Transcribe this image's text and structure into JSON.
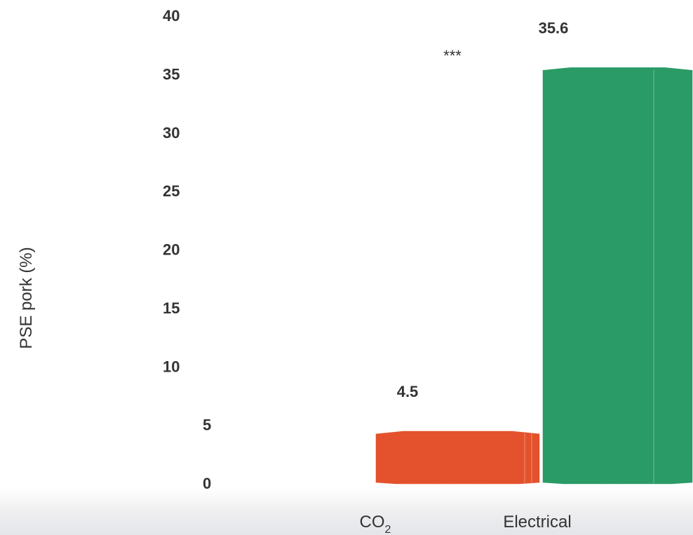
{
  "chart_data": {
    "type": "bar",
    "ylabel": "PSE pork (%)",
    "ylim": [
      0,
      40
    ],
    "yticks": [
      0,
      5,
      10,
      15,
      20,
      25,
      30,
      35,
      40
    ],
    "categories": [
      {
        "main": "CO",
        "sub": "2"
      },
      {
        "main": "Electrical",
        "sub": ""
      }
    ],
    "values": [
      4.5,
      35.6
    ],
    "value_labels": [
      "4.5",
      "35.6"
    ],
    "colors": [
      "#E4522D",
      "#2A9B66"
    ],
    "significance": "***",
    "grid": false
  }
}
